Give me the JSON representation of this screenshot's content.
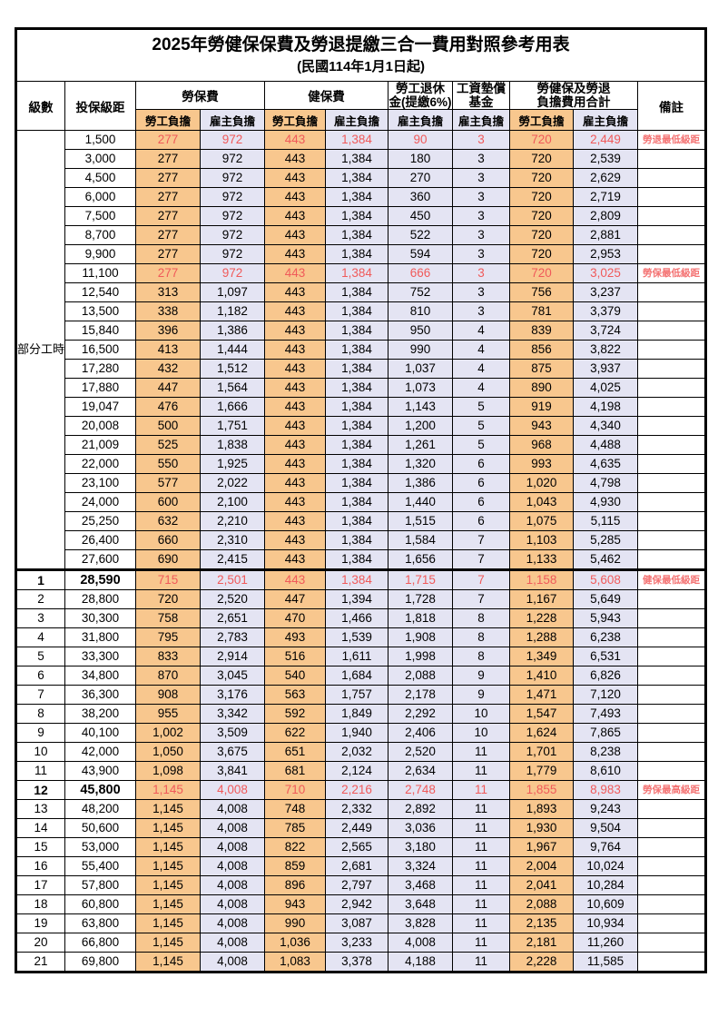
{
  "title": "2025年勞健保保費及勞退提繳三合一費用對照參考用表",
  "subtitle": "(民國114年1月1日起)",
  "headers": {
    "level": "級數",
    "salary": "投保級距",
    "labor_ins": "勞保費",
    "health_ins": "健保費",
    "pension_line1": "勞工退休",
    "pension_line2": "金(提繳6%)",
    "wage_fund_line1": "工資墊償",
    "wage_fund_line2": "基金",
    "total_line1": "勞健保及勞退",
    "total_line2": "負擔費用合計",
    "remark": "備註",
    "employee": "勞工負擔",
    "employer": "雇主負擔"
  },
  "part_time_label": "部分工時",
  "part_time_rowspan": 23,
  "colors": {
    "employee_bg": "#F8C78E",
    "employer_bg": "#E4E4F3",
    "highlight_red": "#F05A5A",
    "remark_red": "#F47272",
    "border": "#000000"
  },
  "rows": [
    {
      "level": "",
      "salary": "1,500",
      "v": [
        "277",
        "972",
        "443",
        "1,384",
        "90",
        "3",
        "720",
        "2,449"
      ],
      "remark": "勞退最低級距",
      "red": true,
      "bold": false
    },
    {
      "level": "",
      "salary": "3,000",
      "v": [
        "277",
        "972",
        "443",
        "1,384",
        "180",
        "3",
        "720",
        "2,539"
      ],
      "remark": "",
      "red": false,
      "bold": false
    },
    {
      "level": "",
      "salary": "4,500",
      "v": [
        "277",
        "972",
        "443",
        "1,384",
        "270",
        "3",
        "720",
        "2,629"
      ],
      "remark": "",
      "red": false,
      "bold": false
    },
    {
      "level": "",
      "salary": "6,000",
      "v": [
        "277",
        "972",
        "443",
        "1,384",
        "360",
        "3",
        "720",
        "2,719"
      ],
      "remark": "",
      "red": false,
      "bold": false
    },
    {
      "level": "",
      "salary": "7,500",
      "v": [
        "277",
        "972",
        "443",
        "1,384",
        "450",
        "3",
        "720",
        "2,809"
      ],
      "remark": "",
      "red": false,
      "bold": false
    },
    {
      "level": "",
      "salary": "8,700",
      "v": [
        "277",
        "972",
        "443",
        "1,384",
        "522",
        "3",
        "720",
        "2,881"
      ],
      "remark": "",
      "red": false,
      "bold": false
    },
    {
      "level": "",
      "salary": "9,900",
      "v": [
        "277",
        "972",
        "443",
        "1,384",
        "594",
        "3",
        "720",
        "2,953"
      ],
      "remark": "",
      "red": false,
      "bold": false
    },
    {
      "level": "",
      "salary": "11,100",
      "v": [
        "277",
        "972",
        "443",
        "1,384",
        "666",
        "3",
        "720",
        "3,025"
      ],
      "remark": "勞保最低級距",
      "red": true,
      "bold": false
    },
    {
      "level": "",
      "salary": "12,540",
      "v": [
        "313",
        "1,097",
        "443",
        "1,384",
        "752",
        "3",
        "756",
        "3,237"
      ],
      "remark": "",
      "red": false,
      "bold": false
    },
    {
      "level": "",
      "salary": "13,500",
      "v": [
        "338",
        "1,182",
        "443",
        "1,384",
        "810",
        "3",
        "781",
        "3,379"
      ],
      "remark": "",
      "red": false,
      "bold": false
    },
    {
      "level": "",
      "salary": "15,840",
      "v": [
        "396",
        "1,386",
        "443",
        "1,384",
        "950",
        "4",
        "839",
        "3,724"
      ],
      "remark": "",
      "red": false,
      "bold": false
    },
    {
      "level": "",
      "salary": "16,500",
      "v": [
        "413",
        "1,444",
        "443",
        "1,384",
        "990",
        "4",
        "856",
        "3,822"
      ],
      "remark": "",
      "red": false,
      "bold": false
    },
    {
      "level": "",
      "salary": "17,280",
      "v": [
        "432",
        "1,512",
        "443",
        "1,384",
        "1,037",
        "4",
        "875",
        "3,937"
      ],
      "remark": "",
      "red": false,
      "bold": false
    },
    {
      "level": "",
      "salary": "17,880",
      "v": [
        "447",
        "1,564",
        "443",
        "1,384",
        "1,073",
        "4",
        "890",
        "4,025"
      ],
      "remark": "",
      "red": false,
      "bold": false
    },
    {
      "level": "",
      "salary": "19,047",
      "v": [
        "476",
        "1,666",
        "443",
        "1,384",
        "1,143",
        "5",
        "919",
        "4,198"
      ],
      "remark": "",
      "red": false,
      "bold": false
    },
    {
      "level": "",
      "salary": "20,008",
      "v": [
        "500",
        "1,751",
        "443",
        "1,384",
        "1,200",
        "5",
        "943",
        "4,340"
      ],
      "remark": "",
      "red": false,
      "bold": false
    },
    {
      "level": "",
      "salary": "21,009",
      "v": [
        "525",
        "1,838",
        "443",
        "1,384",
        "1,261",
        "5",
        "968",
        "4,488"
      ],
      "remark": "",
      "red": false,
      "bold": false
    },
    {
      "level": "",
      "salary": "22,000",
      "v": [
        "550",
        "1,925",
        "443",
        "1,384",
        "1,320",
        "6",
        "993",
        "4,635"
      ],
      "remark": "",
      "red": false,
      "bold": false
    },
    {
      "level": "",
      "salary": "23,100",
      "v": [
        "577",
        "2,022",
        "443",
        "1,384",
        "1,386",
        "6",
        "1,020",
        "4,798"
      ],
      "remark": "",
      "red": false,
      "bold": false
    },
    {
      "level": "",
      "salary": "24,000",
      "v": [
        "600",
        "2,100",
        "443",
        "1,384",
        "1,440",
        "6",
        "1,043",
        "4,930"
      ],
      "remark": "",
      "red": false,
      "bold": false
    },
    {
      "level": "",
      "salary": "25,250",
      "v": [
        "632",
        "2,210",
        "443",
        "1,384",
        "1,515",
        "6",
        "1,075",
        "5,115"
      ],
      "remark": "",
      "red": false,
      "bold": false
    },
    {
      "level": "",
      "salary": "26,400",
      "v": [
        "660",
        "2,310",
        "443",
        "1,384",
        "1,584",
        "7",
        "1,103",
        "5,285"
      ],
      "remark": "",
      "red": false,
      "bold": false
    },
    {
      "level": "",
      "salary": "27,600",
      "v": [
        "690",
        "2,415",
        "443",
        "1,384",
        "1,656",
        "7",
        "1,133",
        "5,462"
      ],
      "remark": "",
      "red": false,
      "bold": false
    },
    {
      "level": "1",
      "salary": "28,590",
      "v": [
        "715",
        "2,501",
        "443",
        "1,384",
        "1,715",
        "7",
        "1,158",
        "5,608"
      ],
      "remark": "健保最低級距",
      "red": true,
      "bold": true
    },
    {
      "level": "2",
      "salary": "28,800",
      "v": [
        "720",
        "2,520",
        "447",
        "1,394",
        "1,728",
        "7",
        "1,167",
        "5,649"
      ],
      "remark": "",
      "red": false,
      "bold": false
    },
    {
      "level": "3",
      "salary": "30,300",
      "v": [
        "758",
        "2,651",
        "470",
        "1,466",
        "1,818",
        "8",
        "1,228",
        "5,943"
      ],
      "remark": "",
      "red": false,
      "bold": false
    },
    {
      "level": "4",
      "salary": "31,800",
      "v": [
        "795",
        "2,783",
        "493",
        "1,539",
        "1,908",
        "8",
        "1,288",
        "6,238"
      ],
      "remark": "",
      "red": false,
      "bold": false
    },
    {
      "level": "5",
      "salary": "33,300",
      "v": [
        "833",
        "2,914",
        "516",
        "1,611",
        "1,998",
        "8",
        "1,349",
        "6,531"
      ],
      "remark": "",
      "red": false,
      "bold": false
    },
    {
      "level": "6",
      "salary": "34,800",
      "v": [
        "870",
        "3,045",
        "540",
        "1,684",
        "2,088",
        "9",
        "1,410",
        "6,826"
      ],
      "remark": "",
      "red": false,
      "bold": false
    },
    {
      "level": "7",
      "salary": "36,300",
      "v": [
        "908",
        "3,176",
        "563",
        "1,757",
        "2,178",
        "9",
        "1,471",
        "7,120"
      ],
      "remark": "",
      "red": false,
      "bold": false
    },
    {
      "level": "8",
      "salary": "38,200",
      "v": [
        "955",
        "3,342",
        "592",
        "1,849",
        "2,292",
        "10",
        "1,547",
        "7,493"
      ],
      "remark": "",
      "red": false,
      "bold": false
    },
    {
      "level": "9",
      "salary": "40,100",
      "v": [
        "1,002",
        "3,509",
        "622",
        "1,940",
        "2,406",
        "10",
        "1,624",
        "7,865"
      ],
      "remark": "",
      "red": false,
      "bold": false
    },
    {
      "level": "10",
      "salary": "42,000",
      "v": [
        "1,050",
        "3,675",
        "651",
        "2,032",
        "2,520",
        "11",
        "1,701",
        "8,238"
      ],
      "remark": "",
      "red": false,
      "bold": false
    },
    {
      "level": "11",
      "salary": "43,900",
      "v": [
        "1,098",
        "3,841",
        "681",
        "2,124",
        "2,634",
        "11",
        "1,779",
        "8,610"
      ],
      "remark": "",
      "red": false,
      "bold": false
    },
    {
      "level": "12",
      "salary": "45,800",
      "v": [
        "1,145",
        "4,008",
        "710",
        "2,216",
        "2,748",
        "11",
        "1,855",
        "8,983"
      ],
      "remark": "勞保最高級距",
      "red": true,
      "bold": true
    },
    {
      "level": "13",
      "salary": "48,200",
      "v": [
        "1,145",
        "4,008",
        "748",
        "2,332",
        "2,892",
        "11",
        "1,893",
        "9,243"
      ],
      "remark": "",
      "red": false,
      "bold": false
    },
    {
      "level": "14",
      "salary": "50,600",
      "v": [
        "1,145",
        "4,008",
        "785",
        "2,449",
        "3,036",
        "11",
        "1,930",
        "9,504"
      ],
      "remark": "",
      "red": false,
      "bold": false
    },
    {
      "level": "15",
      "salary": "53,000",
      "v": [
        "1,145",
        "4,008",
        "822",
        "2,565",
        "3,180",
        "11",
        "1,967",
        "9,764"
      ],
      "remark": "",
      "red": false,
      "bold": false
    },
    {
      "level": "16",
      "salary": "55,400",
      "v": [
        "1,145",
        "4,008",
        "859",
        "2,681",
        "3,324",
        "11",
        "2,004",
        "10,024"
      ],
      "remark": "",
      "red": false,
      "bold": false
    },
    {
      "level": "17",
      "salary": "57,800",
      "v": [
        "1,145",
        "4,008",
        "896",
        "2,797",
        "3,468",
        "11",
        "2,041",
        "10,284"
      ],
      "remark": "",
      "red": false,
      "bold": false
    },
    {
      "level": "18",
      "salary": "60,800",
      "v": [
        "1,145",
        "4,008",
        "943",
        "2,942",
        "3,648",
        "11",
        "2,088",
        "10,609"
      ],
      "remark": "",
      "red": false,
      "bold": false
    },
    {
      "level": "19",
      "salary": "63,800",
      "v": [
        "1,145",
        "4,008",
        "990",
        "3,087",
        "3,828",
        "11",
        "2,135",
        "10,934"
      ],
      "remark": "",
      "red": false,
      "bold": false
    },
    {
      "level": "20",
      "salary": "66,800",
      "v": [
        "1,145",
        "4,008",
        "1,036",
        "3,233",
        "4,008",
        "11",
        "2,181",
        "11,260"
      ],
      "remark": "",
      "red": false,
      "bold": false
    },
    {
      "level": "21",
      "salary": "69,800",
      "v": [
        "1,145",
        "4,008",
        "1,083",
        "3,378",
        "4,188",
        "11",
        "2,228",
        "11,585"
      ],
      "remark": "",
      "red": false,
      "bold": false
    }
  ]
}
